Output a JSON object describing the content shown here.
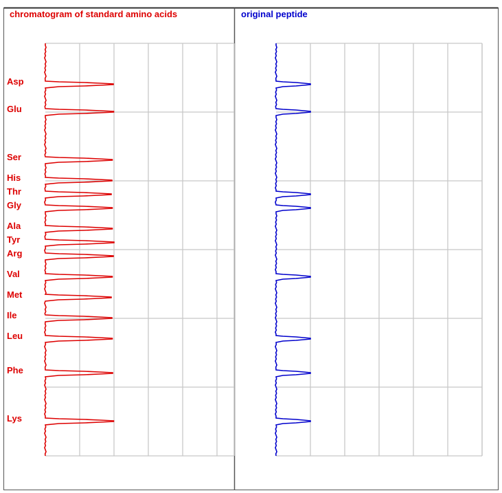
{
  "colors": {
    "standard": "#dd0000",
    "peptide": "#0000cc",
    "grid": "#c8c8c8",
    "border": "#555555"
  },
  "chart_data": [
    {
      "type": "line",
      "title": "chromatogram of standard amino acids",
      "categories": [
        "Asp",
        "Glu",
        "Ser",
        "His",
        "Thr",
        "Gly",
        "Ala",
        "Tyr",
        "Arg",
        "Val",
        "Met",
        "Ile",
        "Leu",
        "Phe",
        "Lys"
      ],
      "values": [
        1.98,
        1.99,
        1.95,
        1.94,
        1.92,
        1.95,
        1.95,
        2.0,
        1.98,
        1.95,
        1.92,
        1.94,
        1.95,
        1.96,
        1.99
      ],
      "grid": true,
      "xlim": [
        0,
        5.5
      ],
      "ylim": [
        0,
        6
      ]
    },
    {
      "type": "line",
      "title": "original peptide",
      "categories": [
        "Asp",
        "Glu",
        "Ser",
        "His",
        "Thr",
        "Gly",
        "Ala",
        "Tyr",
        "Arg",
        "Val",
        "Met",
        "Ile",
        "Leu",
        "Phe",
        "Lys"
      ],
      "values": [
        1.0,
        1.0,
        0,
        0,
        1.0,
        1.0,
        0,
        0,
        0,
        1.0,
        0,
        0,
        1.0,
        1.0,
        1.0
      ],
      "grid": true,
      "xlim": [
        0,
        6
      ],
      "ylim": [
        0,
        6
      ]
    }
  ]
}
